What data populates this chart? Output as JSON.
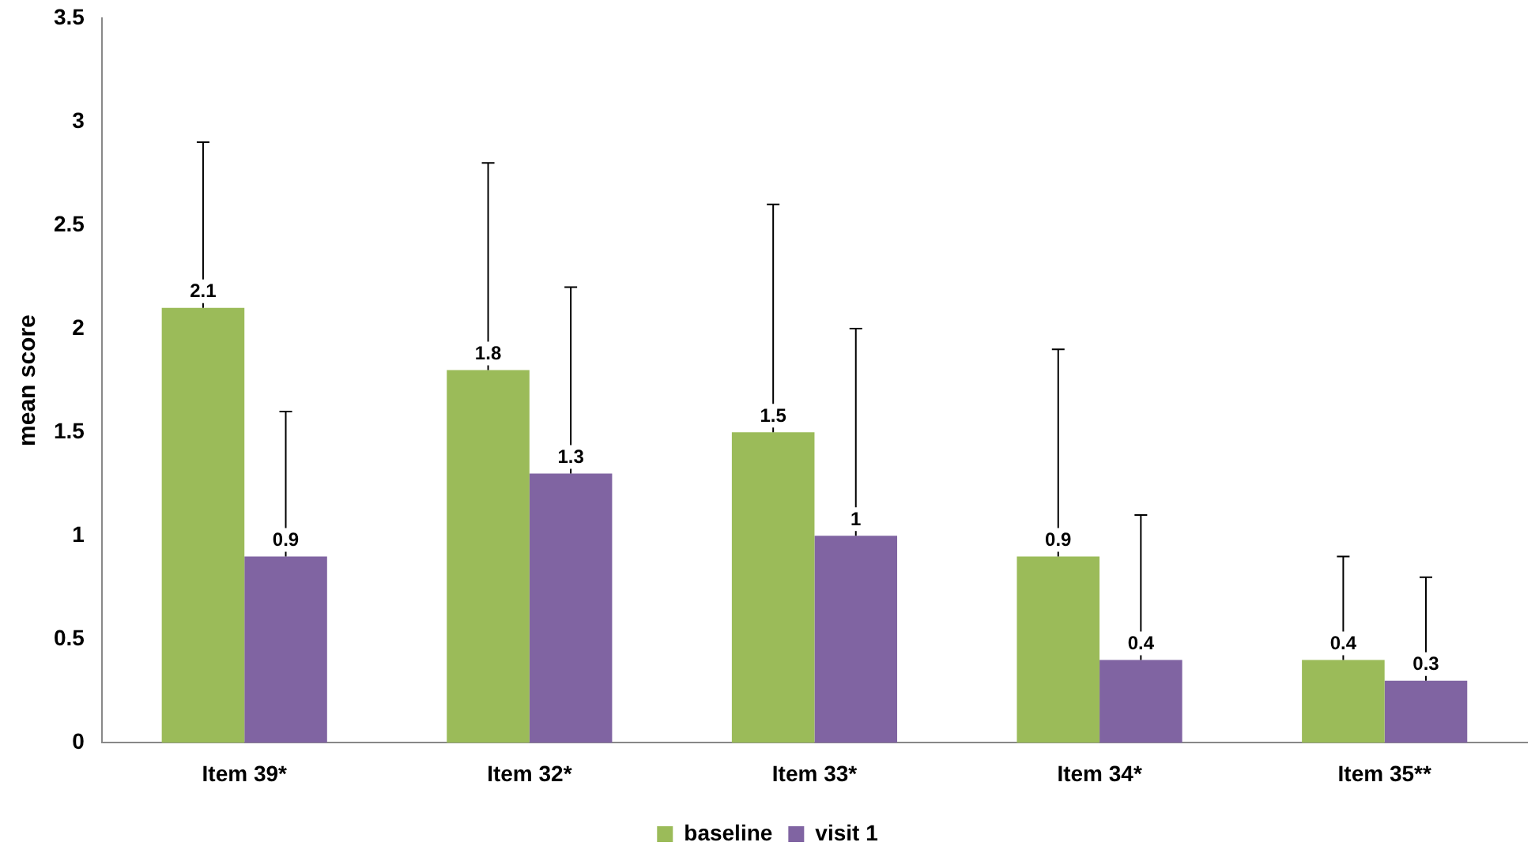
{
  "chart_data": {
    "type": "bar",
    "ylabel": "mean score",
    "categories": [
      "Item 39*",
      "Item 32*",
      "Item 33*",
      "Item 34*",
      "Item 35**"
    ],
    "series": [
      {
        "name": "baseline",
        "color": "#9bbb59",
        "values": [
          2.1,
          1.8,
          1.5,
          0.9,
          0.4
        ],
        "errors": [
          [
            2.1,
            2.9
          ],
          [
            1.8,
            2.8
          ],
          [
            1.5,
            2.6
          ],
          [
            0.9,
            1.9
          ],
          [
            0.4,
            0.9
          ]
        ]
      },
      {
        "name": "visit 1",
        "color": "#8064a2",
        "values": [
          0.9,
          1.3,
          1,
          0.4,
          0.3
        ],
        "errors": [
          [
            0.9,
            1.6
          ],
          [
            1.3,
            2.2
          ],
          [
            1,
            2.0
          ],
          [
            0.4,
            1.1
          ],
          [
            0.3,
            0.8
          ]
        ]
      }
    ],
    "ylim": [
      0,
      3.5
    ],
    "yticks": [
      0,
      0.5,
      1,
      1.5,
      2,
      2.5,
      3,
      3.5
    ],
    "grid": false,
    "legend": "bottom",
    "data_labels": true
  }
}
